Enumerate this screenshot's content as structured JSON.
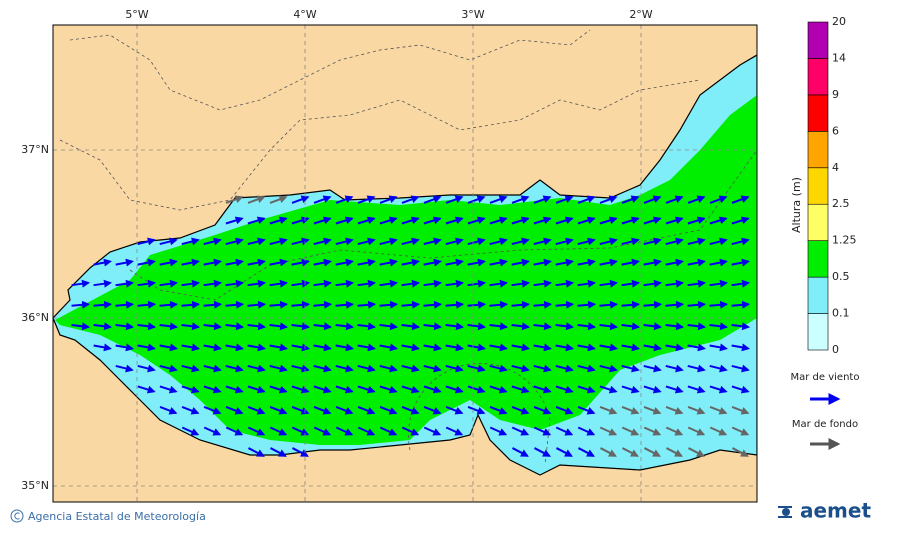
{
  "map": {
    "lon_labels": [
      "5°W",
      "4°W",
      "3°W",
      "2°W"
    ],
    "lat_labels": [
      "37°N",
      "36°N",
      "35°N"
    ]
  },
  "legend": {
    "title": "Altura (m)",
    "levels": [
      0,
      0.1,
      0.5,
      1.25,
      2.5,
      4,
      6,
      9,
      14,
      20
    ],
    "colors": [
      "#ccffff",
      "#80eef8",
      "#00ee00",
      "#ffff66",
      "#ffd700",
      "#ffa500",
      "#ff0000",
      "#ff0066",
      "#b000b0"
    ],
    "wind_sea": "Mar de viento",
    "swell": "Mar de fondo"
  },
  "footer": {
    "credit": "Agencia Estatal de Meteorología",
    "logo": "aemet"
  }
}
